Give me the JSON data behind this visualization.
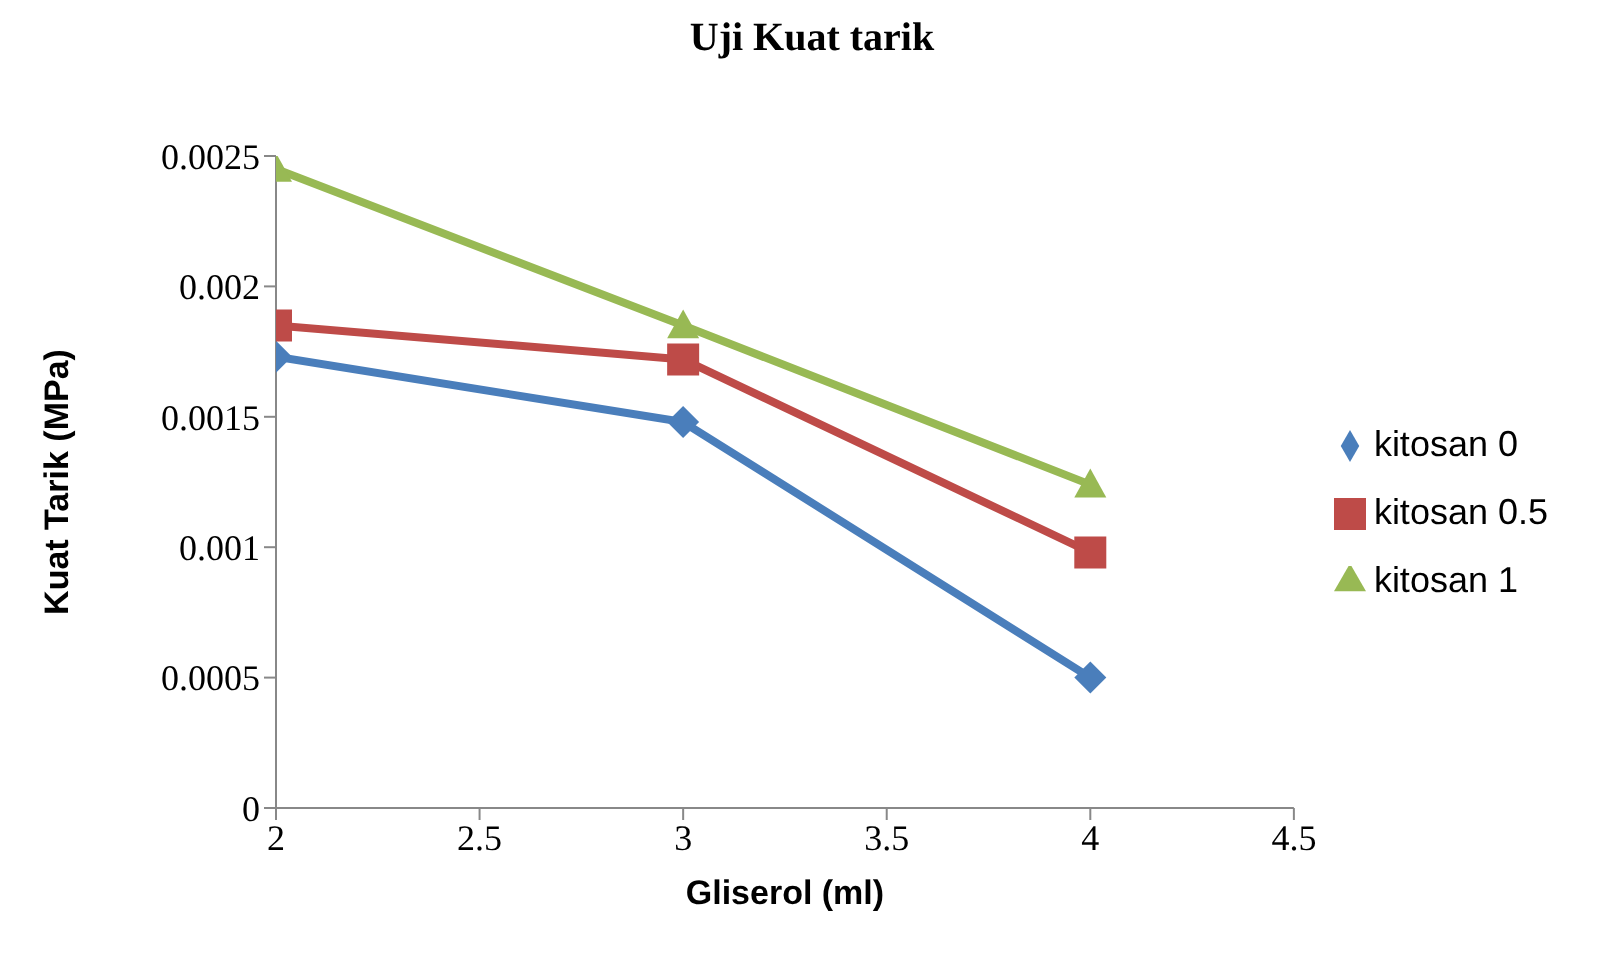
{
  "chart_data": {
    "type": "line",
    "title": "Uji Kuat tarik",
    "xlabel": "Gliserol (ml)",
    "ylabel": "Kuat Tarik (MPa)",
    "x": [
      2,
      3,
      4
    ],
    "xlim": [
      2,
      4.5
    ],
    "xticks": [
      2,
      2.5,
      3,
      3.5,
      4,
      4.5
    ],
    "ylim": [
      0,
      0.0025
    ],
    "yticks": [
      0,
      0.0005,
      0.001,
      0.0015,
      0.002,
      0.0025
    ],
    "grid": false,
    "legend": "right",
    "line_style": "solid",
    "series": [
      {
        "name": "kitosan 0",
        "color": "#4a7ebb",
        "marker": "diamond",
        "values": [
          0.00173,
          0.00148,
          0.0005
        ]
      },
      {
        "name": "kitosan 0.5",
        "color": "#be4b48",
        "marker": "square",
        "values": [
          0.00185,
          0.00172,
          0.00098
        ]
      },
      {
        "name": "kitosan 1",
        "color": "#98b954",
        "marker": "triangle",
        "values": [
          0.00245,
          0.00185,
          0.00124
        ]
      }
    ]
  }
}
